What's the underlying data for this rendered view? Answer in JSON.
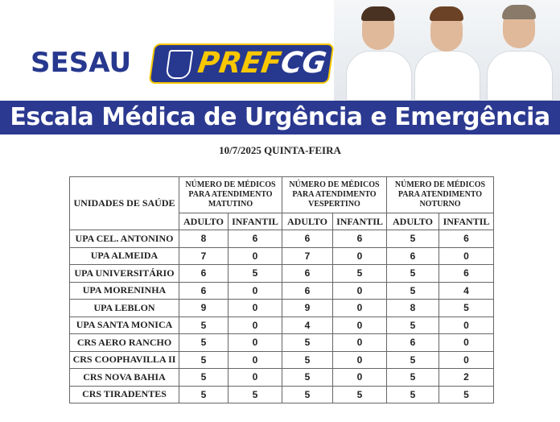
{
  "header": {
    "logo_sesau": "SESAU",
    "logo_pref_1": "PREF",
    "logo_pref_2": "CG",
    "colors": {
      "brand_blue": "#27388f",
      "brand_yellow": "#f7c700"
    }
  },
  "banner": {
    "title": "Escala Médica de Urgência e Emergência"
  },
  "date": "10/7/2025 QUINTA-FEIRA",
  "table": {
    "unit_header": "UNIDADES DE SAÚDE",
    "groups": [
      "NÚMERO DE MÉDICOS PARA ATENDIMENTO MATUTINO",
      "NÚMERO DE MÉDICOS PARA ATENDIMENTO VESPERTINO",
      "NÚMERO DE MÉDICOS PARA ATENDIMENTO NOTURNO"
    ],
    "sub_headers": [
      "ADULTO",
      "INFANTIL",
      "ADULTO",
      "INFANTIL",
      "ADULTO",
      "INFANTIL"
    ],
    "rows": [
      {
        "name": "UPA CEL. ANTONINO",
        "values": [
          "8",
          "6",
          "6",
          "6",
          "5",
          "6"
        ]
      },
      {
        "name": "UPA ALMEIDA",
        "values": [
          "7",
          "0",
          "7",
          "0",
          "6",
          "0"
        ]
      },
      {
        "name": "UPA UNIVERSITÁRIO",
        "values": [
          "6",
          "5",
          "6",
          "5",
          "5",
          "6"
        ]
      },
      {
        "name": "UPA MORENINHA",
        "values": [
          "6",
          "0",
          "6",
          "0",
          "5",
          "4"
        ]
      },
      {
        "name": "UPA LEBLON",
        "values": [
          "9",
          "0",
          "9",
          "0",
          "8",
          "5"
        ]
      },
      {
        "name": "UPA SANTA MONICA",
        "values": [
          "5",
          "0",
          "4",
          "0",
          "5",
          "0"
        ]
      },
      {
        "name": "CRS AERO RANCHO",
        "values": [
          "5",
          "0",
          "5",
          "0",
          "6",
          "0"
        ]
      },
      {
        "name": "CRS COOPHAVILLA II",
        "values": [
          "5",
          "0",
          "5",
          "0",
          "5",
          "0"
        ]
      },
      {
        "name": "CRS NOVA BAHIA",
        "values": [
          "5",
          "0",
          "5",
          "0",
          "5",
          "2"
        ]
      },
      {
        "name": "CRS TIRADENTES",
        "values": [
          "5",
          "5",
          "5",
          "5",
          "5",
          "5"
        ]
      }
    ]
  }
}
